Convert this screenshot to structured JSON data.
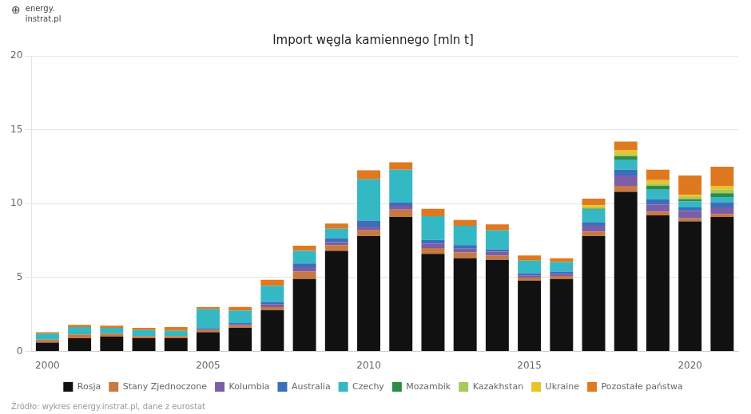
{
  "chart_data": {
    "type": "bar",
    "stacked": true,
    "title": "Import węgla kamiennego [mln t]",
    "categories": [
      "2000",
      null,
      null,
      null,
      null,
      "2005",
      null,
      null,
      null,
      null,
      "2010",
      null,
      null,
      null,
      null,
      "2015",
      null,
      null,
      null,
      null,
      "2020",
      null
    ],
    "series": [
      {
        "name": "Rosja",
        "color": "#111111",
        "values": [
          0.6,
          0.9,
          1.0,
          0.9,
          0.9,
          1.3,
          1.6,
          2.8,
          4.9,
          6.8,
          7.8,
          9.1,
          6.6,
          6.3,
          6.2,
          4.8,
          4.9,
          7.8,
          10.8,
          9.2,
          8.8,
          9.1
        ]
      },
      {
        "name": "Stany Zjednoczone",
        "color": "#c87941",
        "values": [
          0.2,
          0.25,
          0.2,
          0.15,
          0.15,
          0.15,
          0.15,
          0.2,
          0.5,
          0.4,
          0.4,
          0.5,
          0.4,
          0.4,
          0.3,
          0.2,
          0.2,
          0.3,
          0.4,
          0.25,
          0.2,
          0.2
        ]
      },
      {
        "name": "Kolumbia",
        "color": "#7b5ea7",
        "values": [
          0.0,
          0.0,
          0.0,
          0.0,
          0.0,
          0.1,
          0.1,
          0.2,
          0.3,
          0.2,
          0.25,
          0.25,
          0.3,
          0.25,
          0.25,
          0.15,
          0.15,
          0.4,
          0.7,
          0.5,
          0.5,
          0.45
        ]
      },
      {
        "name": "Australia",
        "color": "#3a6fba",
        "values": [
          0.0,
          0.0,
          0.0,
          0.0,
          0.0,
          0.0,
          0.07,
          0.15,
          0.25,
          0.25,
          0.4,
          0.25,
          0.25,
          0.25,
          0.15,
          0.15,
          0.15,
          0.25,
          0.4,
          0.35,
          0.25,
          0.35
        ]
      },
      {
        "name": "Czechy",
        "color": "#34b8c4",
        "values": [
          0.4,
          0.5,
          0.4,
          0.4,
          0.35,
          1.3,
          0.85,
          1.1,
          0.85,
          0.65,
          2.8,
          2.2,
          1.6,
          1.3,
          1.3,
          0.85,
          0.65,
          0.85,
          0.65,
          0.65,
          0.4,
          0.35
        ]
      },
      {
        "name": "Mozambik",
        "color": "#2e8b4a",
        "values": [
          0.0,
          0.0,
          0.0,
          0.0,
          0.0,
          0.0,
          0.0,
          0.0,
          0.0,
          0.0,
          0.0,
          0.0,
          0.0,
          0.0,
          0.0,
          0.0,
          0.0,
          0.07,
          0.25,
          0.25,
          0.15,
          0.25
        ]
      },
      {
        "name": "Kazakhstan",
        "color": "#a8c85a",
        "values": [
          0.0,
          0.0,
          0.0,
          0.0,
          0.0,
          0.0,
          0.0,
          0.0,
          0.0,
          0.0,
          0.0,
          0.0,
          0.0,
          0.0,
          0.0,
          0.0,
          0.0,
          0.07,
          0.15,
          0.15,
          0.15,
          0.25
        ]
      },
      {
        "name": "Ukraine",
        "color": "#e8c428",
        "values": [
          0.0,
          0.0,
          0.0,
          0.0,
          0.0,
          0.0,
          0.0,
          0.0,
          0.0,
          0.0,
          0.0,
          0.0,
          0.0,
          0.0,
          0.0,
          0.0,
          0.0,
          0.15,
          0.25,
          0.25,
          0.15,
          0.25
        ]
      },
      {
        "name": "Pozostałe państwa",
        "color": "#e07820",
        "values": [
          0.1,
          0.15,
          0.15,
          0.15,
          0.25,
          0.15,
          0.25,
          0.4,
          0.35,
          0.35,
          0.6,
          0.5,
          0.5,
          0.4,
          0.4,
          0.35,
          0.25,
          0.45,
          0.6,
          0.7,
          1.3,
          1.3
        ]
      }
    ],
    "ylim": [
      0,
      20
    ],
    "yticks": [
      0,
      5,
      10,
      15,
      20
    ],
    "grid": true,
    "legend": "bottom",
    "annotations": [
      "⊕",
      "energy.\ninstrat.pl",
      "Źródło: wykres energy.instrat.pl, dane z eurostat"
    ]
  }
}
